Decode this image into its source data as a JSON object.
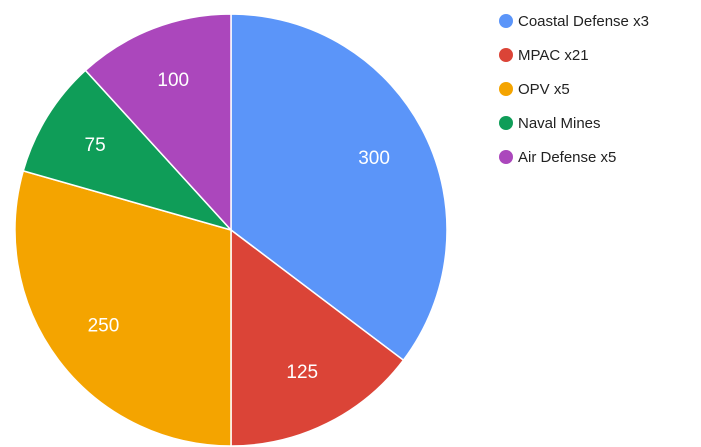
{
  "chart_data": {
    "type": "pie",
    "categories": [
      "Coastal Defense x3",
      "MPAC x21",
      "OPV x5",
      "Naval Mines",
      "Air Defense x5"
    ],
    "values": [
      300,
      125,
      250,
      75,
      100
    ],
    "colors": [
      "#5b95f9",
      "#db4437",
      "#f4a400",
      "#0f9d58",
      "#ab47bc"
    ],
    "legend": "right"
  }
}
